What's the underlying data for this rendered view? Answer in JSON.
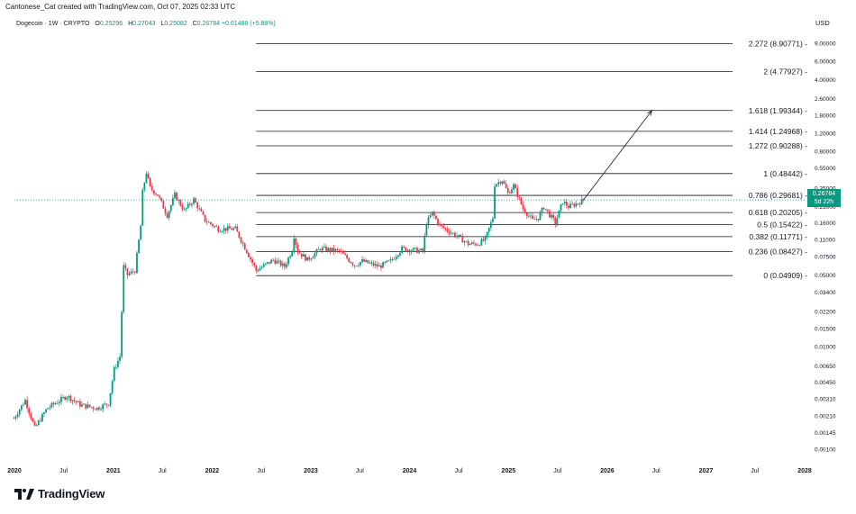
{
  "caption": "Cantonese_Cat created with TradingView.com, Oct 07, 2025 02:33 UTC",
  "header": {
    "symbol": "Dogecoin · 1W · CRYPTO",
    "open_label": "O",
    "open": "0.25296",
    "high_label": "H",
    "high": "0.27043",
    "low_label": "L",
    "low": "0.25082",
    "close_label": "C",
    "close": "0.26784",
    "change": "+0.01488 (+5.88%)"
  },
  "currency": "USD",
  "price_badge": {
    "price": "0.26784",
    "countdown": "5d 22h",
    "color": "#089981"
  },
  "brand": "TradingView",
  "colors": {
    "up": "#089981",
    "down": "#f23645",
    "fib": "#131722",
    "axis_text": "#131722",
    "current_price_line": "#089981"
  },
  "chart_data": {
    "type": "candlestick",
    "timeframe": "1W",
    "y_scale": "log",
    "ylim": [
      0.0008,
      11.5
    ],
    "y_ticks": [
      "9.00000",
      "6.00000",
      "4.00000",
      "2.60000",
      "1.80000",
      "1.20000",
      "0.80000",
      "0.55000",
      "0.35000",
      "0.23000",
      "0.16000",
      "0.11000",
      "0.07500",
      "0.05000",
      "0.03400",
      "0.02200",
      "0.01500",
      "0.01000",
      "0.00650",
      "0.00450",
      "0.00310",
      "0.00210",
      "0.00145",
      "0.00100"
    ],
    "y_tick_values": [
      9.0,
      6.0,
      4.0,
      2.6,
      1.8,
      1.2,
      0.8,
      0.55,
      0.35,
      0.23,
      0.16,
      0.11,
      0.075,
      0.05,
      0.034,
      0.022,
      0.015,
      0.01,
      0.0065,
      0.0045,
      0.0031,
      0.0021,
      0.00145,
      0.001
    ],
    "x_ticks": [
      "2020",
      "Jul",
      "2021",
      "Jul",
      "2022",
      "Jul",
      "2023",
      "Jul",
      "2024",
      "Jul",
      "2025",
      "Jul",
      "2026",
      "Jul",
      "2027",
      "Jul",
      "2028"
    ],
    "x_tick_dates": [
      "2020-01-01",
      "2020-07-01",
      "2021-01-01",
      "2021-07-01",
      "2022-01-01",
      "2022-07-01",
      "2023-01-01",
      "2023-07-01",
      "2024-01-01",
      "2024-07-01",
      "2025-01-01",
      "2025-07-01",
      "2026-01-01",
      "2026-07-01",
      "2027-01-01",
      "2027-07-01",
      "2028-01-01"
    ],
    "price_path": [
      [
        "2019-12-30",
        0.002
      ],
      [
        "2020-02-10",
        0.003
      ],
      [
        "2020-03-16",
        0.0016
      ],
      [
        "2020-05-01",
        0.0025
      ],
      [
        "2020-07-13",
        0.0033
      ],
      [
        "2020-09-01",
        0.0027
      ],
      [
        "2020-11-01",
        0.0025
      ],
      [
        "2020-12-14",
        0.0028
      ],
      [
        "2021-01-04",
        0.006
      ],
      [
        "2021-01-25",
        0.008
      ],
      [
        "2021-02-08",
        0.06
      ],
      [
        "2021-02-22",
        0.05
      ],
      [
        "2021-03-22",
        0.055
      ],
      [
        "2021-04-12",
        0.15
      ],
      [
        "2021-04-19",
        0.32
      ],
      [
        "2021-05-03",
        0.5
      ],
      [
        "2021-05-17",
        0.35
      ],
      [
        "2021-06-14",
        0.3
      ],
      [
        "2021-07-19",
        0.19
      ],
      [
        "2021-08-16",
        0.3
      ],
      [
        "2021-09-20",
        0.21
      ],
      [
        "2021-10-25",
        0.27
      ],
      [
        "2021-12-06",
        0.17
      ],
      [
        "2022-01-24",
        0.14
      ],
      [
        "2022-03-28",
        0.14
      ],
      [
        "2022-05-09",
        0.085
      ],
      [
        "2022-06-13",
        0.055
      ],
      [
        "2022-08-15",
        0.07
      ],
      [
        "2022-09-26",
        0.06
      ],
      [
        "2022-10-24",
        0.088
      ],
      [
        "2022-10-31",
        0.12
      ],
      [
        "2022-11-14",
        0.085
      ],
      [
        "2022-12-19",
        0.07
      ],
      [
        "2023-02-06",
        0.09
      ],
      [
        "2023-04-17",
        0.085
      ],
      [
        "2023-06-12",
        0.062
      ],
      [
        "2023-07-10",
        0.068
      ],
      [
        "2023-09-11",
        0.06
      ],
      [
        "2023-10-23",
        0.068
      ],
      [
        "2023-12-04",
        0.09
      ],
      [
        "2024-02-19",
        0.085
      ],
      [
        "2024-03-04",
        0.16
      ],
      [
        "2024-03-25",
        0.2
      ],
      [
        "2024-04-22",
        0.15
      ],
      [
        "2024-06-24",
        0.12
      ],
      [
        "2024-08-05",
        0.1
      ],
      [
        "2024-09-09",
        0.1
      ],
      [
        "2024-10-07",
        0.11
      ],
      [
        "2024-11-04",
        0.18
      ],
      [
        "2024-11-11",
        0.38
      ],
      [
        "2024-12-09",
        0.42
      ],
      [
        "2024-12-30",
        0.31
      ],
      [
        "2025-01-20",
        0.37
      ],
      [
        "2025-02-24",
        0.22
      ],
      [
        "2025-03-31",
        0.17
      ],
      [
        "2025-04-21",
        0.18
      ],
      [
        "2025-05-12",
        0.23
      ],
      [
        "2025-06-23",
        0.16
      ],
      [
        "2025-07-21",
        0.26
      ],
      [
        "2025-08-11",
        0.23
      ],
      [
        "2025-09-15",
        0.25
      ],
      [
        "2025-10-06",
        0.26784
      ]
    ],
    "fib_levels": [
      {
        "ratio": "0",
        "price": 0.04909,
        "label": "0 (0.04909)"
      },
      {
        "ratio": "0.236",
        "price": 0.08427,
        "label": "0.236 (0.08427)"
      },
      {
        "ratio": "0.382",
        "price": 0.11771,
        "label": "0.382 (0.11771)"
      },
      {
        "ratio": "0.5",
        "price": 0.15422,
        "label": "0.5 (0.15422)"
      },
      {
        "ratio": "0.618",
        "price": 0.20205,
        "label": "0.618 (0.20205)"
      },
      {
        "ratio": "0.786",
        "price": 0.29681,
        "label": "0.786 (0.29681)"
      },
      {
        "ratio": "1",
        "price": 0.48442,
        "label": "1 (0.48442)"
      },
      {
        "ratio": "1.272",
        "price": 0.90288,
        "label": "1.272 (0.90288)"
      },
      {
        "ratio": "1.414",
        "price": 1.24968,
        "label": "1.414 (1.24968)"
      },
      {
        "ratio": "1.618",
        "price": 1.99344,
        "label": "1.618 (1.99344)"
      },
      {
        "ratio": "2",
        "price": 4.77927,
        "label": "2 (4.77927)"
      },
      {
        "ratio": "2.272",
        "price": 8.90771,
        "label": "2.272 (8.90771)"
      }
    ],
    "fib_start_date": "2022-06-13",
    "projection_arrow": {
      "from": [
        "2025-10-06",
        0.27
      ],
      "to": [
        "2026-06-15",
        1.99
      ]
    },
    "current_price": 0.26784
  }
}
